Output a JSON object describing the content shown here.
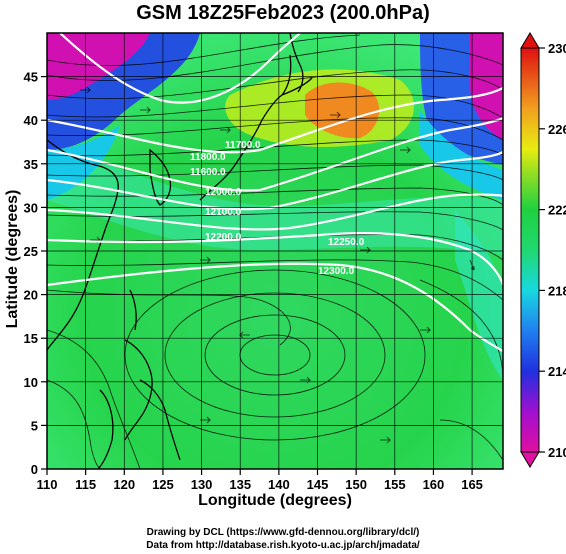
{
  "title": "GSM 18Z25Feb2023 (200.0hPa)",
  "xlabel": "Longitude (degrees)",
  "ylabel": "Latitude  (degrees)",
  "x_ticks": [
    "110",
    "115",
    "120",
    "125",
    "130",
    "135",
    "140",
    "145",
    "150",
    "155",
    "160",
    "165"
  ],
  "y_ticks": [
    "0",
    "5",
    "10",
    "15",
    "20",
    "25",
    "30",
    "35",
    "40",
    "45"
  ],
  "colorbar_ticks": [
    "210",
    "214",
    "218",
    "222",
    "226",
    "230"
  ],
  "contour_labels": [
    "11800.0",
    "11700.0",
    "11600.0",
    "12000.0",
    "12100.0",
    "12200.0",
    "12250.0",
    "12300.0"
  ],
  "credit_line1": "Drawing by DCL (https://www.gfd-dennou.org/library/dcl/)",
  "credit_line2": "Data from http://database.rish.kyoto-u.ac.jp/arch/jmadata/",
  "colors": {
    "magenta": "#e0109e",
    "blue": "#2036d8",
    "cyan": "#18c8e8",
    "green": "#20d040",
    "yellow": "#e8ec10",
    "orange": "#f08020",
    "red": "#e02010"
  }
}
